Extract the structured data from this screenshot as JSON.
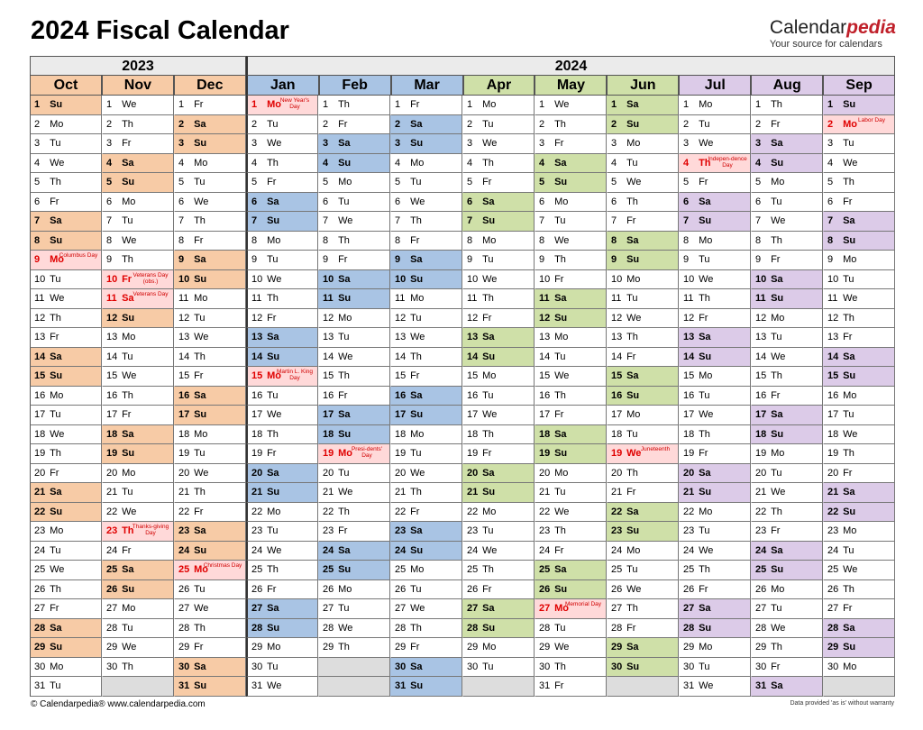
{
  "title": "2024 Fiscal Calendar",
  "brand": {
    "name_part1": "Calendar",
    "name_part2": "pedia",
    "tagline": "Your source for calendars"
  },
  "years": [
    {
      "label": "2023",
      "span": 3
    },
    {
      "label": "2024",
      "span": 9
    }
  ],
  "colors": {
    "q1": "#f7cba6",
    "q2": "#a9c4e4",
    "q3": "#cfe0a8",
    "q4": "#dccbe8",
    "holiday_bg": "#ffd9d9",
    "holiday_text": "#e00000",
    "empty": "#dddddd"
  },
  "months": [
    {
      "name": "Oct",
      "color": "#f7cba6",
      "header": "#f7cba6",
      "days": [
        "Su",
        "Mo",
        "Tu",
        "We",
        "Th",
        "Fr",
        "Sa",
        "Su",
        "Mo",
        "Tu",
        "We",
        "Th",
        "Fr",
        "Sa",
        "Su",
        "Mo",
        "Tu",
        "We",
        "Th",
        "Fr",
        "Sa",
        "Su",
        "Mo",
        "Tu",
        "We",
        "Th",
        "Fr",
        "Sa",
        "Su",
        "Mo",
        "Tu"
      ],
      "holidays": {
        "9": "Columbus Day"
      }
    },
    {
      "name": "Nov",
      "color": "#f7cba6",
      "header": "#f7cba6",
      "days": [
        "We",
        "Th",
        "Fr",
        "Sa",
        "Su",
        "Mo",
        "Tu",
        "We",
        "Th",
        "Fr",
        "Sa",
        "Su",
        "Mo",
        "Tu",
        "We",
        "Th",
        "Fr",
        "Sa",
        "Su",
        "Mo",
        "Tu",
        "We",
        "Th",
        "Fr",
        "Sa",
        "Su",
        "Mo",
        "Tu",
        "We",
        "Th"
      ],
      "holidays": {
        "10": "Veterans Day (obs.)",
        "11": "Veterans Day",
        "23": "Thanks-giving Day"
      }
    },
    {
      "name": "Dec",
      "color": "#f7cba6",
      "header": "#f7cba6",
      "days": [
        "Fr",
        "Sa",
        "Su",
        "Mo",
        "Tu",
        "We",
        "Th",
        "Fr",
        "Sa",
        "Su",
        "Mo",
        "Tu",
        "We",
        "Th",
        "Fr",
        "Sa",
        "Su",
        "Mo",
        "Tu",
        "We",
        "Th",
        "Fr",
        "Sa",
        "Su",
        "Mo",
        "Tu",
        "We",
        "Th",
        "Fr",
        "Sa",
        "Su"
      ],
      "holidays": {
        "25": "Christmas Day"
      }
    },
    {
      "name": "Jan",
      "color": "#a9c4e4",
      "header": "#a9c4e4",
      "days": [
        "Mo",
        "Tu",
        "We",
        "Th",
        "Fr",
        "Sa",
        "Su",
        "Mo",
        "Tu",
        "We",
        "Th",
        "Fr",
        "Sa",
        "Su",
        "Mo",
        "Tu",
        "We",
        "Th",
        "Fr",
        "Sa",
        "Su",
        "Mo",
        "Tu",
        "We",
        "Th",
        "Fr",
        "Sa",
        "Su",
        "Mo",
        "Tu",
        "We"
      ],
      "holidays": {
        "1": "New Year's Day",
        "15": "Martin L. King Day"
      }
    },
    {
      "name": "Feb",
      "color": "#a9c4e4",
      "header": "#a9c4e4",
      "days": [
        "Th",
        "Fr",
        "Sa",
        "Su",
        "Mo",
        "Tu",
        "We",
        "Th",
        "Fr",
        "Sa",
        "Su",
        "Mo",
        "Tu",
        "We",
        "Th",
        "Fr",
        "Sa",
        "Su",
        "Mo",
        "Tu",
        "We",
        "Th",
        "Fr",
        "Sa",
        "Su",
        "Mo",
        "Tu",
        "We",
        "Th"
      ],
      "holidays": {
        "19": "Presi-dents' Day"
      }
    },
    {
      "name": "Mar",
      "color": "#a9c4e4",
      "header": "#a9c4e4",
      "days": [
        "Fr",
        "Sa",
        "Su",
        "Mo",
        "Tu",
        "We",
        "Th",
        "Fr",
        "Sa",
        "Su",
        "Mo",
        "Tu",
        "We",
        "Th",
        "Fr",
        "Sa",
        "Su",
        "Mo",
        "Tu",
        "We",
        "Th",
        "Fr",
        "Sa",
        "Su",
        "Mo",
        "Tu",
        "We",
        "Th",
        "Fr",
        "Sa",
        "Su"
      ],
      "holidays": {}
    },
    {
      "name": "Apr",
      "color": "#cfe0a8",
      "header": "#cfe0a8",
      "days": [
        "Mo",
        "Tu",
        "We",
        "Th",
        "Fr",
        "Sa",
        "Su",
        "Mo",
        "Tu",
        "We",
        "Th",
        "Fr",
        "Sa",
        "Su",
        "Mo",
        "Tu",
        "We",
        "Th",
        "Fr",
        "Sa",
        "Su",
        "Mo",
        "Tu",
        "We",
        "Th",
        "Fr",
        "Sa",
        "Su",
        "Mo",
        "Tu"
      ],
      "holidays": {}
    },
    {
      "name": "May",
      "color": "#cfe0a8",
      "header": "#cfe0a8",
      "days": [
        "We",
        "Th",
        "Fr",
        "Sa",
        "Su",
        "Mo",
        "Tu",
        "We",
        "Th",
        "Fr",
        "Sa",
        "Su",
        "Mo",
        "Tu",
        "We",
        "Th",
        "Fr",
        "Sa",
        "Su",
        "Mo",
        "Tu",
        "We",
        "Th",
        "Fr",
        "Sa",
        "Su",
        "Mo",
        "Tu",
        "We",
        "Th",
        "Fr"
      ],
      "holidays": {
        "27": "Memorial Day"
      }
    },
    {
      "name": "Jun",
      "color": "#cfe0a8",
      "header": "#cfe0a8",
      "days": [
        "Sa",
        "Su",
        "Mo",
        "Tu",
        "We",
        "Th",
        "Fr",
        "Sa",
        "Su",
        "Mo",
        "Tu",
        "We",
        "Th",
        "Fr",
        "Sa",
        "Su",
        "Mo",
        "Tu",
        "We",
        "Th",
        "Fr",
        "Sa",
        "Su",
        "Mo",
        "Tu",
        "We",
        "Th",
        "Fr",
        "Sa",
        "Su"
      ],
      "holidays": {
        "19": "Juneteenth"
      }
    },
    {
      "name": "Jul",
      "color": "#dccbe8",
      "header": "#dccbe8",
      "days": [
        "Mo",
        "Tu",
        "We",
        "Th",
        "Fr",
        "Sa",
        "Su",
        "Mo",
        "Tu",
        "We",
        "Th",
        "Fr",
        "Sa",
        "Su",
        "Mo",
        "Tu",
        "We",
        "Th",
        "Fr",
        "Sa",
        "Su",
        "Mo",
        "Tu",
        "We",
        "Th",
        "Fr",
        "Sa",
        "Su",
        "Mo",
        "Tu",
        "We"
      ],
      "holidays": {
        "4": "Indepen-dence Day"
      }
    },
    {
      "name": "Aug",
      "color": "#dccbe8",
      "header": "#dccbe8",
      "days": [
        "Th",
        "Fr",
        "Sa",
        "Su",
        "Mo",
        "Tu",
        "We",
        "Th",
        "Fr",
        "Sa",
        "Su",
        "Mo",
        "Tu",
        "We",
        "Th",
        "Fr",
        "Sa",
        "Su",
        "Mo",
        "Tu",
        "We",
        "Th",
        "Fr",
        "Sa",
        "Su",
        "Mo",
        "Tu",
        "We",
        "Th",
        "Fr",
        "Sa"
      ],
      "holidays": {}
    },
    {
      "name": "Sep",
      "color": "#dccbe8",
      "header": "#dccbe8",
      "days": [
        "Su",
        "Mo",
        "Tu",
        "We",
        "Th",
        "Fr",
        "Sa",
        "Su",
        "Mo",
        "Tu",
        "We",
        "Th",
        "Fr",
        "Sa",
        "Su",
        "Mo",
        "Tu",
        "We",
        "Th",
        "Fr",
        "Sa",
        "Su",
        "Mo",
        "Tu",
        "We",
        "Th",
        "Fr",
        "Sa",
        "Su",
        "Mo"
      ],
      "holidays": {
        "2": "Labor Day"
      }
    }
  ],
  "footer": {
    "left": "© Calendarpedia®   www.calendarpedia.com",
    "right": "Data provided 'as is' without warranty"
  }
}
